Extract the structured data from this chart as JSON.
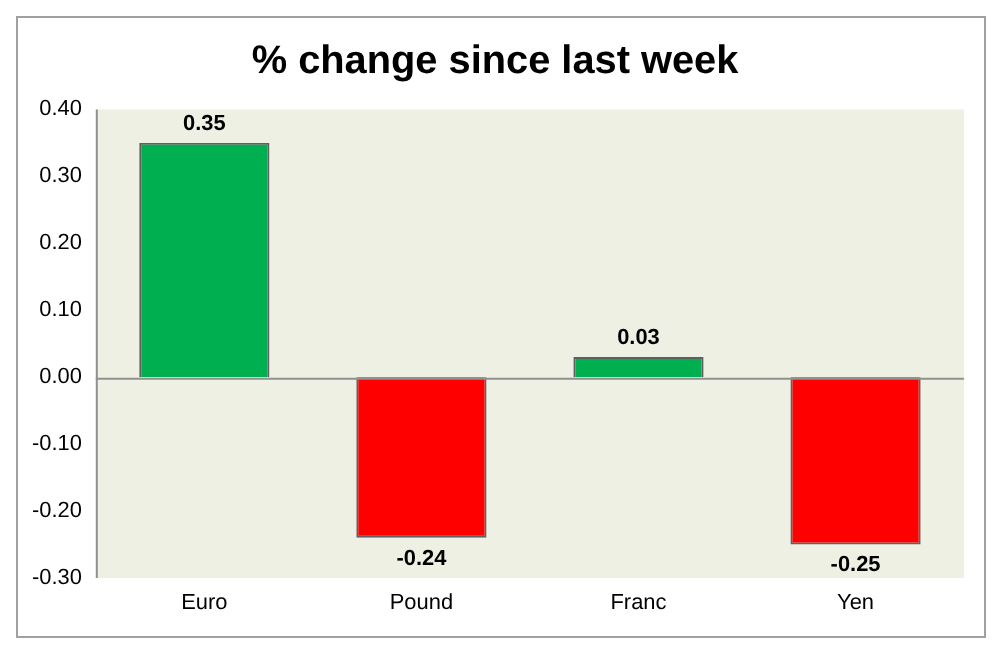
{
  "chart_data": {
    "type": "bar",
    "title": "% change since last week",
    "categories": [
      "Euro",
      "Pound",
      "Franc",
      "Yen"
    ],
    "values": [
      0.35,
      -0.24,
      0.03,
      -0.25
    ],
    "colors": [
      "#00b050",
      "#ff0000",
      "#00b050",
      "#ff0000"
    ],
    "ylim": [
      -0.3,
      0.4
    ],
    "yticks": [
      {
        "value": 0.4,
        "label": "0.40"
      },
      {
        "value": 0.3,
        "label": "0.30"
      },
      {
        "value": 0.2,
        "label": "0.20"
      },
      {
        "value": 0.1,
        "label": "0.10"
      },
      {
        "value": 0,
        "label": "0.00"
      },
      {
        "value": -0.1,
        "label": "-0.10"
      },
      {
        "value": -0.2,
        "label": "-0.20"
      },
      {
        "value": -0.3,
        "label": "-0.30"
      }
    ],
    "data_labels": true,
    "legend": false
  }
}
